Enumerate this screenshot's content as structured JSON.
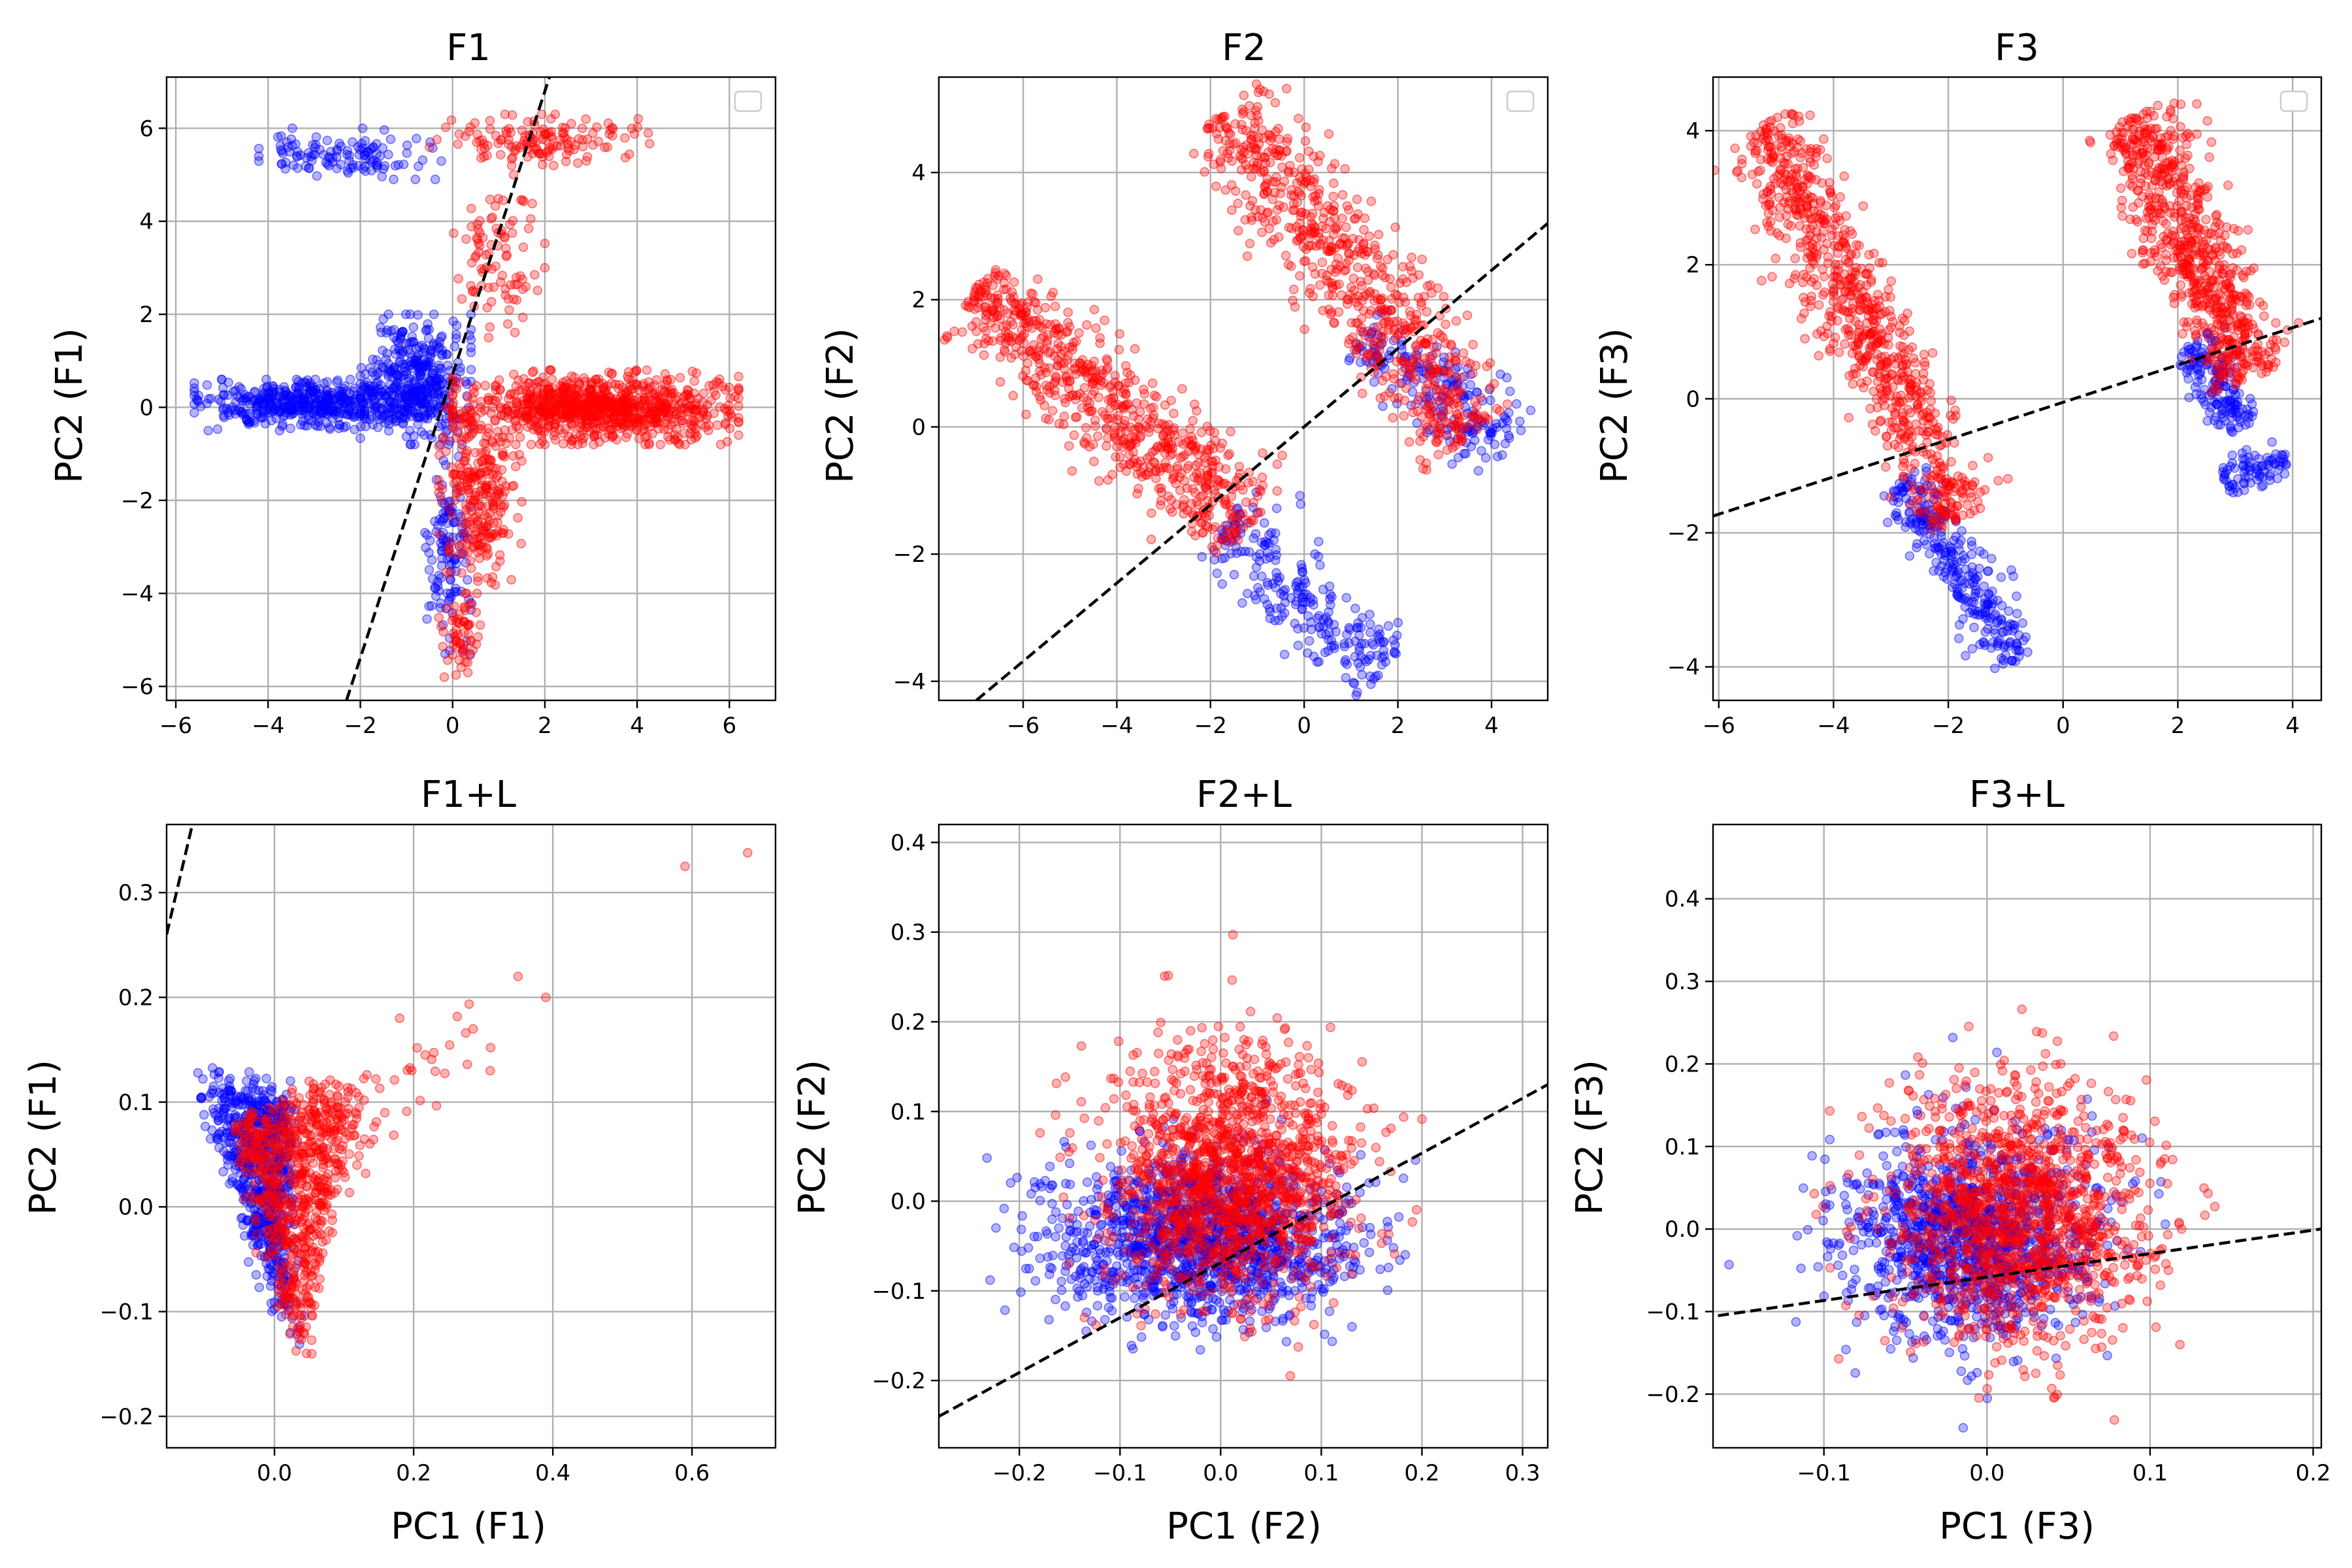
{
  "colors": {
    "class_a": "#0000ff",
    "class_b": "#ff0000",
    "boundary": "#000000",
    "grid": "#b0b0b0"
  },
  "chart_data": [
    {
      "type": "scatter",
      "title": "F1",
      "xlabel": "",
      "ylabel": "PC2 (F1)",
      "xlim": [
        -6.2,
        7.0
      ],
      "ylim": [
        -6.3,
        7.1
      ],
      "xticks": [
        -6,
        -4,
        -2,
        0,
        2,
        4,
        6
      ],
      "xtick_labels": [
        "−6",
        "−4",
        "−2",
        "0",
        "2",
        "4",
        "6"
      ],
      "yticks": [
        -6,
        -4,
        -2,
        0,
        2,
        4,
        6
      ],
      "ytick_labels": [
        "−6",
        "−4",
        "−2",
        "0",
        "2",
        "4",
        "6"
      ],
      "grid": true,
      "legend": "top-right (empty)",
      "boundary": {
        "style": "dashed",
        "x": [
          -2.3,
          2.1
        ],
        "y": [
          -6.3,
          7.1
        ]
      },
      "series": [
        {
          "color": "blue",
          "clusters": [
            {
              "x": [
                -5.6,
                -0.3
              ],
              "y": [
                -0.5,
                0.6
              ],
              "n": 520
            },
            {
              "x": [
                -2.0,
                0.4
              ],
              "y": [
                -0.8,
                2.0
              ],
              "n": 360
            },
            {
              "x": [
                -4.2,
                -0.2
              ],
              "y": [
                4.9,
                6.0
              ],
              "n": 120
            },
            {
              "x": [
                -0.6,
                0.4
              ],
              "y": [
                -5.3,
                -0.8
              ],
              "n": 120
            }
          ]
        },
        {
          "color": "red",
          "clusters": [
            {
              "x": [
                0.0,
                6.2
              ],
              "y": [
                -0.8,
                0.8
              ],
              "n": 900
            },
            {
              "x": [
                -0.3,
                1.5
              ],
              "y": [
                -4.0,
                0.0
              ],
              "n": 260
            },
            {
              "x": [
                -0.5,
                4.5
              ],
              "y": [
                5.2,
                6.3
              ],
              "n": 140
            },
            {
              "x": [
                0.0,
                2.0
              ],
              "y": [
                1.5,
                5.0
              ],
              "n": 90
            },
            {
              "x": [
                -0.3,
                0.6
              ],
              "y": [
                -5.8,
                -4.0
              ],
              "n": 60
            }
          ]
        }
      ]
    },
    {
      "type": "scatter",
      "title": "F2",
      "xlabel": "",
      "ylabel": "PC2 (F2)",
      "xlim": [
        -7.8,
        5.2
      ],
      "ylim": [
        -4.3,
        5.5
      ],
      "xticks": [
        -6,
        -4,
        -2,
        0,
        2,
        4
      ],
      "xtick_labels": [
        "−6",
        "−4",
        "−2",
        "0",
        "2",
        "4"
      ],
      "yticks": [
        -4,
        -2,
        0,
        2,
        4
      ],
      "ytick_labels": [
        "−4",
        "−2",
        "0",
        "2",
        "4"
      ],
      "grid": true,
      "legend": "top-right (empty)",
      "boundary": {
        "style": "dashed",
        "x": [
          -7.0,
          5.2
        ],
        "y": [
          -4.3,
          3.2
        ]
      },
      "series": [
        {
          "color": "blue",
          "bands": [
            {
              "from": [
                -1.8,
                -1.6
              ],
              "to": [
                1.7,
                -3.8
              ],
              "n": 240,
              "spread": 0.22
            },
            {
              "from": [
                1.2,
                1.5
              ],
              "to": [
                4.4,
                -0.3
              ],
              "n": 200,
              "spread": 0.2
            }
          ]
        },
        {
          "color": "red",
          "bands": [
            {
              "from": [
                -7.0,
                2.2
              ],
              "to": [
                -1.2,
                -1.6
              ],
              "n": 700,
              "spread": 0.28
            },
            {
              "from": [
                -1.7,
                5.0
              ],
              "to": [
                3.6,
                -0.1
              ],
              "n": 700,
              "spread": 0.3
            }
          ]
        }
      ]
    },
    {
      "type": "scatter",
      "title": "F3",
      "xlabel": "",
      "ylabel": "PC2 (F3)",
      "xlim": [
        -6.1,
        4.5
      ],
      "ylim": [
        -4.5,
        4.8
      ],
      "xticks": [
        -6,
        -4,
        -2,
        0,
        2,
        4
      ],
      "xtick_labels": [
        "−6",
        "−4",
        "−2",
        "0",
        "2",
        "4"
      ],
      "yticks": [
        -4,
        -2,
        0,
        2,
        4
      ],
      "ytick_labels": [
        "−4",
        "−2",
        "0",
        "2",
        "4"
      ],
      "grid": true,
      "legend": "top-right (empty)",
      "boundary": {
        "style": "dashed",
        "x": [
          -6.1,
          4.5
        ],
        "y": [
          -1.75,
          1.2
        ]
      },
      "series": [
        {
          "color": "blue",
          "bands": [
            {
              "from": [
                -2.8,
                -1.2
              ],
              "to": [
                -0.8,
                -3.9
              ],
              "n": 300,
              "spread": 0.15
            },
            {
              "from": [
                2.2,
                0.8
              ],
              "to": [
                3.2,
                -0.4
              ],
              "n": 160,
              "spread": 0.15
            },
            {
              "from": [
                2.8,
                -1.2
              ],
              "to": [
                3.9,
                -0.9
              ],
              "n": 80,
              "spread": 0.1
            }
          ]
        },
        {
          "color": "red",
          "bands": [
            {
              "from": [
                -5.2,
                4.1
              ],
              "to": [
                -1.8,
                -1.8
              ],
              "n": 800,
              "spread": 0.22
            },
            {
              "from": [
                1.2,
                4.2
              ],
              "to": [
                3.3,
                0.3
              ],
              "n": 700,
              "spread": 0.25
            }
          ]
        }
      ]
    },
    {
      "type": "scatter",
      "title": "F1+L",
      "xlabel": "PC1 (F1)",
      "ylabel": "PC2 (F1)",
      "xlim": [
        -0.155,
        0.72
      ],
      "ylim": [
        -0.23,
        0.365
      ],
      "xticks": [
        0.0,
        0.2,
        0.4,
        0.6
      ],
      "xtick_labels": [
        "0.0",
        "0.2",
        "0.4",
        "0.6"
      ],
      "yticks": [
        -0.2,
        -0.1,
        0.0,
        0.1,
        0.2,
        0.3
      ],
      "ytick_labels": [
        "−0.2",
        "−0.1",
        "0.0",
        "0.1",
        "0.2",
        "0.3"
      ],
      "grid": true,
      "boundary": {
        "style": "dashed",
        "x": [
          -0.155,
          -0.118
        ],
        "y": [
          0.26,
          0.365
        ]
      },
      "series": [
        {
          "color": "blue",
          "wedge": {
            "top_left": [
              -0.11,
              0.12
            ],
            "top_right": [
              0.02,
              0.1
            ],
            "bottom": [
              0.02,
              -0.12
            ],
            "n": 700
          }
        },
        {
          "color": "red",
          "wedge": {
            "top_left": [
              -0.06,
              0.08
            ],
            "top_right": [
              0.12,
              0.12
            ],
            "bottom": [
              0.04,
              -0.14
            ],
            "n": 700
          },
          "extra": {
            "x": [
              0.1,
              0.3
            ],
            "y": [
              0.05,
              0.18
            ],
            "n": 40
          },
          "points": [
            [
              0.35,
              0.22
            ],
            [
              0.39,
              0.2
            ],
            [
              0.59,
              0.325
            ],
            [
              0.68,
              0.338
            ],
            [
              0.31,
              0.13
            ],
            [
              0.18,
              0.18
            ]
          ]
        }
      ]
    },
    {
      "type": "scatter",
      "title": "F2+L",
      "xlabel": "PC1 (F2)",
      "ylabel": "PC2 (F2)",
      "xlim": [
        -0.28,
        0.325
      ],
      "ylim": [
        -0.275,
        0.42
      ],
      "xticks": [
        -0.2,
        -0.1,
        0.0,
        0.1,
        0.2,
        0.3
      ],
      "xtick_labels": [
        "−0.2",
        "−0.1",
        "0.0",
        "0.1",
        "0.2",
        "0.3"
      ],
      "yticks": [
        -0.2,
        -0.1,
        0.0,
        0.1,
        0.2,
        0.3,
        0.4
      ],
      "ytick_labels": [
        "−0.2",
        "−0.1",
        "0.0",
        "0.1",
        "0.2",
        "0.3",
        "0.4"
      ],
      "grid": true,
      "boundary": {
        "style": "dashed",
        "x": [
          -0.28,
          0.325
        ],
        "y": [
          -0.24,
          0.13
        ]
      },
      "series": [
        {
          "color": "blue",
          "blob": {
            "center": [
              -0.02,
              -0.04
            ],
            "sd": [
              0.075,
              0.045
            ],
            "n": 1400
          }
        },
        {
          "color": "red",
          "blob": {
            "center": [
              0.01,
              0.03
            ],
            "sd": [
              0.06,
              0.07
            ],
            "n": 1400
          }
        }
      ]
    },
    {
      "type": "scatter",
      "title": "F3+L",
      "xlabel": "PC1 (F3)",
      "ylabel": "PC2 (F3)",
      "xlim": [
        -0.168,
        0.205
      ],
      "ylim": [
        -0.265,
        0.49
      ],
      "xticks": [
        -0.1,
        0.0,
        0.1,
        0.2
      ],
      "xtick_labels": [
        "−0.1",
        "0.0",
        "0.1",
        "0.2"
      ],
      "yticks": [
        -0.2,
        -0.1,
        0.0,
        0.1,
        0.2,
        0.3,
        0.4
      ],
      "ytick_labels": [
        "−0.2",
        "−0.1",
        "0.0",
        "0.1",
        "0.2",
        "0.3",
        "0.4"
      ],
      "grid": true,
      "boundary": {
        "style": "dashed",
        "x": [
          -0.165,
          0.205
        ],
        "y": [
          -0.105,
          0.0
        ]
      },
      "series": [
        {
          "color": "blue",
          "blob": {
            "center": [
              -0.01,
              -0.01
            ],
            "sd": [
              0.038,
              0.06
            ],
            "n": 1200
          }
        },
        {
          "color": "red",
          "blob": {
            "center": [
              0.02,
              0.02
            ],
            "sd": [
              0.04,
              0.08
            ],
            "n": 1300
          }
        }
      ]
    }
  ]
}
